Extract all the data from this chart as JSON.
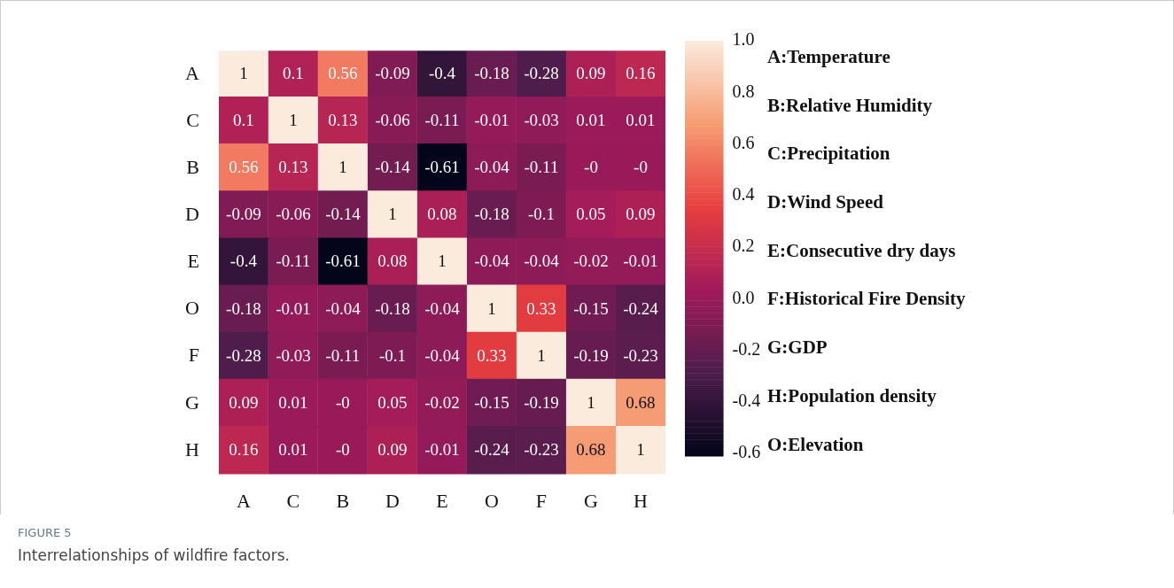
{
  "chart_data": {
    "type": "heatmap",
    "title": "FIGURE 5",
    "subtitle": "Interrelationships of wildfire factors.",
    "categories": [
      "A",
      "C",
      "B",
      "D",
      "E",
      "O",
      "F",
      "G",
      "H"
    ],
    "y_categories": [
      "A",
      "C",
      "B",
      "D",
      "E",
      "O",
      "F",
      "G",
      "H"
    ],
    "cells": [
      [
        1,
        0.1,
        0.56,
        -0.09,
        -0.4,
        -0.18,
        -0.28,
        0.09,
        0.16
      ],
      [
        0.1,
        1,
        0.13,
        -0.06,
        -0.11,
        -0.01,
        -0.03,
        0.01,
        0.01
      ],
      [
        0.56,
        0.13,
        1,
        -0.14,
        -0.61,
        -0.04,
        -0.11,
        0,
        0
      ],
      [
        -0.09,
        -0.06,
        -0.14,
        1,
        0.08,
        -0.18,
        -0.1,
        0.05,
        0.09
      ],
      [
        -0.4,
        -0.11,
        -0.61,
        0.08,
        1,
        -0.04,
        -0.04,
        -0.02,
        -0.01
      ],
      [
        -0.18,
        -0.01,
        -0.04,
        -0.18,
        -0.04,
        1,
        0.33,
        -0.15,
        -0.24
      ],
      [
        -0.28,
        -0.03,
        -0.11,
        -0.1,
        -0.04,
        0.33,
        1,
        -0.19,
        -0.23
      ],
      [
        0.09,
        0.01,
        0,
        0.05,
        -0.02,
        -0.15,
        -0.19,
        1,
        0.68
      ],
      [
        0.16,
        0.01,
        0,
        0.09,
        -0.01,
        -0.24,
        -0.23,
        0.68,
        1
      ]
    ],
    "cell_labels": [
      [
        "1",
        "0.1",
        "0.56",
        "-0.09",
        "-0.4",
        "-0.18",
        "-0.28",
        "0.09",
        "0.16"
      ],
      [
        "0.1",
        "1",
        "0.13",
        "-0.06",
        "-0.11",
        "-0.01",
        "-0.03",
        "0.01",
        "0.01"
      ],
      [
        "0.56",
        "0.13",
        "1",
        "-0.14",
        "-0.61",
        "-0.04",
        "-0.11",
        "-0",
        "-0"
      ],
      [
        "-0.09",
        "-0.06",
        "-0.14",
        "1",
        "0.08",
        "-0.18",
        "-0.1",
        "0.05",
        "0.09"
      ],
      [
        "-0.4",
        "-0.11",
        "-0.61",
        "0.08",
        "1",
        "-0.04",
        "-0.04",
        "-0.02",
        "-0.01"
      ],
      [
        "-0.18",
        "-0.01",
        "-0.04",
        "-0.18",
        "-0.04",
        "1",
        "0.33",
        "-0.15",
        "-0.24"
      ],
      [
        "-0.28",
        "-0.03",
        "-0.11",
        "-0.1",
        "-0.04",
        "0.33",
        "1",
        "-0.19",
        "-0.23"
      ],
      [
        "0.09",
        "0.01",
        "-0",
        "0.05",
        "-0.02",
        "-0.15",
        "-0.19",
        "1",
        "0.68"
      ],
      [
        "0.16",
        "0.01",
        "-0",
        "0.09",
        "-0.01",
        "-0.24",
        "-0.23",
        "0.68",
        "1"
      ]
    ],
    "clim": [
      -0.61,
      1
    ],
    "cticks": [
      {
        "value": -0.6,
        "label": "-0.6"
      },
      {
        "value": -0.4,
        "label": "-0.4"
      },
      {
        "value": -0.2,
        "label": "-0.2"
      },
      {
        "value": 0,
        "label": "0.0"
      },
      {
        "value": 0.2,
        "label": "0.2"
      },
      {
        "value": 0.4,
        "label": "0.4"
      },
      {
        "value": 0.6,
        "label": "0.6"
      },
      {
        "value": 0.8,
        "label": "0.8"
      },
      {
        "value": 1,
        "label": "1.0"
      }
    ],
    "annotations": [
      "A:Temperature",
      "B:Relative Humidity",
      "C:Precipitation",
      "D:Wind Speed",
      "E:Consecutive dry days",
      "F:Historical Fire Density",
      "G:GDP",
      "H:Population density",
      "O:Elevation"
    ]
  }
}
